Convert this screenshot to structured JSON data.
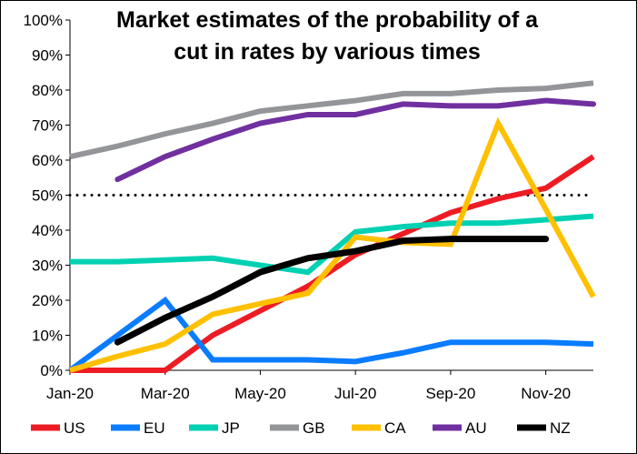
{
  "chart_data": {
    "type": "line",
    "title": [
      "Market estimates of the probability of a",
      "cut in rates by various times"
    ],
    "xlabel": "",
    "ylabel": "",
    "x": [
      "Jan-20",
      "Feb-20",
      "Mar-20",
      "Apr-20",
      "May-20",
      "Jun-20",
      "Jul-20",
      "Aug-20",
      "Sep-20",
      "Oct-20",
      "Nov-20",
      "Dec-20"
    ],
    "x_tick_labels": [
      "Jan-20",
      "Mar-20",
      "May-20",
      "Jul-20",
      "Sep-20",
      "Nov-20"
    ],
    "ylim": [
      0,
      100
    ],
    "y_tick_labels": [
      "0%",
      "10%",
      "20%",
      "30%",
      "40%",
      "50%",
      "60%",
      "70%",
      "80%",
      "90%",
      "100%"
    ],
    "reference_line": {
      "value": 50,
      "style": "dotted",
      "color": "#000000"
    },
    "legend_position": "bottom",
    "series": [
      {
        "name": "US",
        "color": "#ED1C24",
        "values": [
          0,
          0,
          0,
          10,
          17,
          24,
          33,
          39,
          45,
          49,
          52,
          61
        ]
      },
      {
        "name": "EU",
        "color": "#0A7CFF",
        "values": [
          0,
          10,
          20,
          3,
          3,
          3,
          2.5,
          5,
          8,
          8,
          8,
          7.5
        ]
      },
      {
        "name": "JP",
        "color": "#00D1B2",
        "values": [
          31,
          31,
          31.5,
          32,
          30,
          28,
          39.5,
          41,
          42,
          42,
          43,
          44
        ]
      },
      {
        "name": "GB",
        "color": "#939598",
        "values": [
          61,
          64,
          67.5,
          70.5,
          74,
          75.5,
          77,
          79,
          79,
          80,
          80.5,
          82
        ]
      },
      {
        "name": "CA",
        "color": "#FFC000",
        "values": [
          0,
          4,
          7.5,
          16,
          19,
          22,
          38,
          36.5,
          36,
          70.5,
          46,
          21
        ]
      },
      {
        "name": "AU",
        "color": "#7030A0",
        "values": [
          null,
          54.5,
          61,
          66,
          70.5,
          73,
          73,
          76,
          75.5,
          75.5,
          77,
          76
        ]
      },
      {
        "name": "NZ",
        "color": "#000000",
        "values": [
          null,
          8,
          15,
          21,
          28,
          32,
          34,
          37,
          37.5,
          37.5,
          37.5,
          null
        ]
      }
    ]
  }
}
